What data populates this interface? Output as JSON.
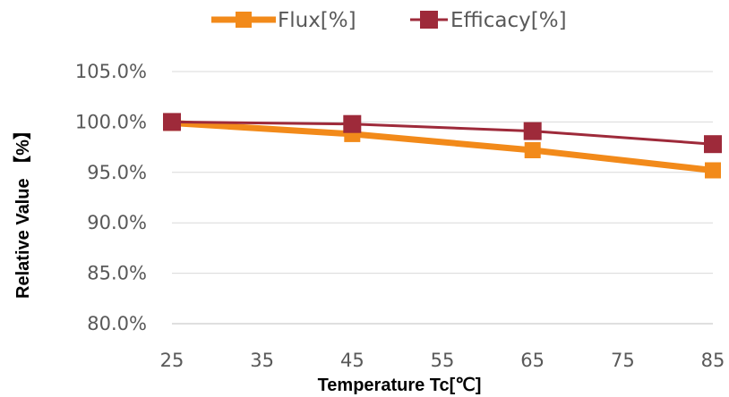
{
  "chart_data": {
    "type": "line",
    "x": [
      25,
      45,
      65,
      85
    ],
    "series": [
      {
        "name": "Flux[%]",
        "values": [
          99.9,
          98.8,
          97.2,
          95.2
        ],
        "color": "#F28A1A"
      },
      {
        "name": "Efficacy[%]",
        "values": [
          100.0,
          99.8,
          99.1,
          97.8
        ],
        "color": "#9E2A3A"
      }
    ],
    "xlabel": "Temperature Tc[℃]",
    "ylabel": "Relative Value 【%】",
    "xlim": [
      25,
      85
    ],
    "ylim": [
      80,
      105
    ],
    "xticks": [
      25,
      35,
      45,
      55,
      65,
      75,
      85
    ],
    "yticks": [
      80,
      85,
      90,
      95,
      100,
      105
    ],
    "ytick_labels": [
      "80.0%",
      "85.0%",
      "90.0%",
      "95.0%",
      "100.0%",
      "105.0%"
    ],
    "grid": "horizontal",
    "legend": "top-center"
  }
}
